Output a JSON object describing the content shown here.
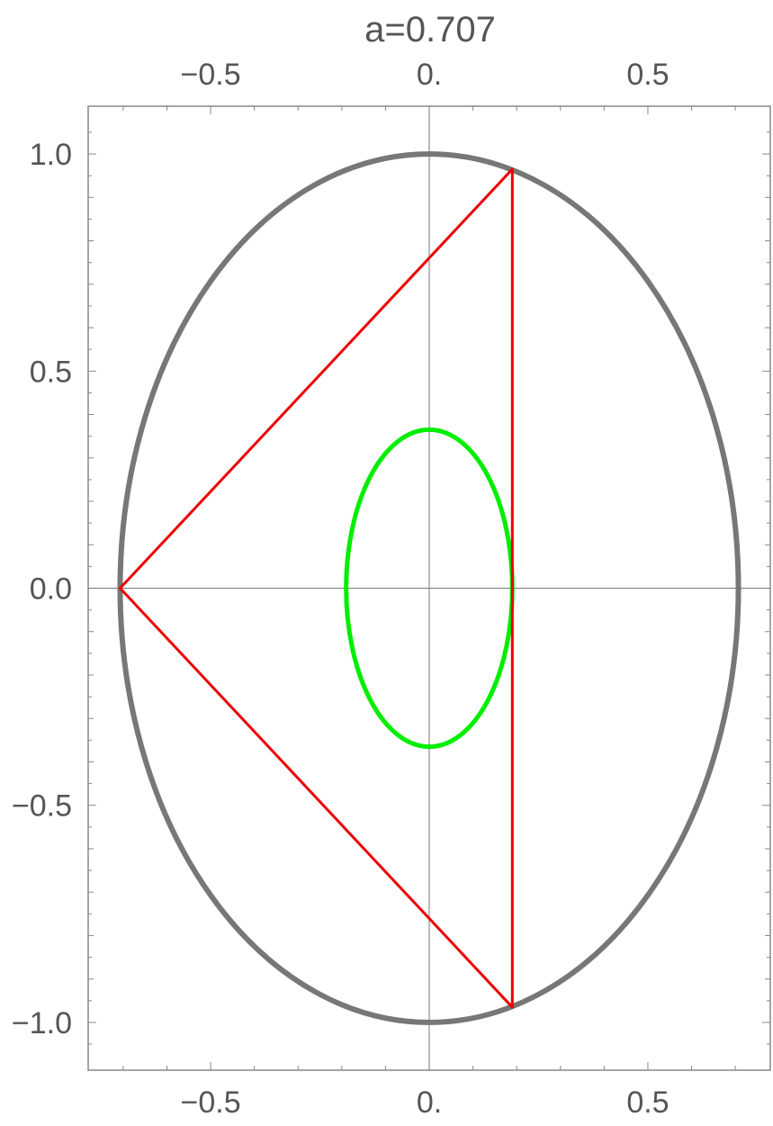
{
  "chart_data": {
    "type": "line",
    "title": "a=0.707",
    "xlabel": "",
    "ylabel": "",
    "xlim": [
      -0.78,
      0.78
    ],
    "ylim": [
      -1.11,
      1.11
    ],
    "x_ticks": [
      {
        "value": -0.5,
        "label": "−0.5"
      },
      {
        "value": 0,
        "label": "0."
      },
      {
        "value": 0.5,
        "label": "0.5"
      }
    ],
    "y_ticks": [
      {
        "value": 1.0,
        "label": "1.0"
      },
      {
        "value": 0.5,
        "label": "0.5"
      },
      {
        "value": 0.0,
        "label": "0.0"
      },
      {
        "value": -0.5,
        "label": "−0.5"
      },
      {
        "value": -1.0,
        "label": "−1.0"
      }
    ],
    "axes_through_origin": true,
    "grid": false,
    "curves": [
      {
        "kind": "ellipse",
        "center": [
          0,
          0
        ],
        "rx": 0.707,
        "ry": 1.0,
        "color": "#777777"
      },
      {
        "kind": "ellipse",
        "center": [
          0,
          0
        ],
        "rx": 0.19,
        "ry": 0.365,
        "color": "#00ee00"
      },
      {
        "kind": "polygon",
        "points": [
          [
            -0.707,
            0
          ],
          [
            0.19,
            0.965
          ],
          [
            0.19,
            -0.965
          ]
        ],
        "color": "#ee0000"
      }
    ]
  }
}
